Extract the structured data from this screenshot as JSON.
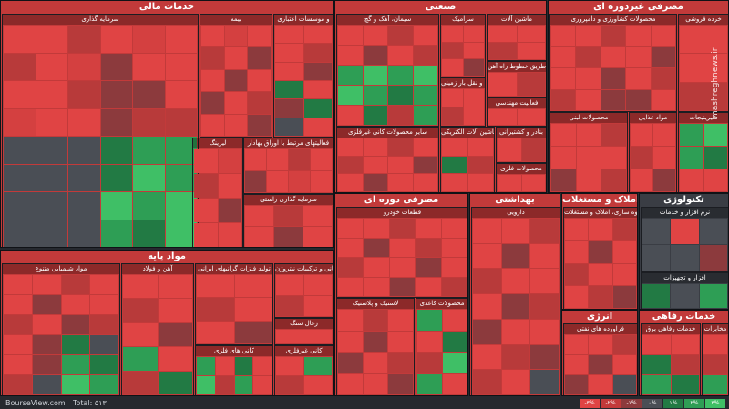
{
  "sections": {
    "financial": "خدمات مالی",
    "industry": "صنعتی",
    "consumer": "مصرفی غیردوره ای",
    "base_materials": "مواد پایه",
    "cyclical_consumer": "مصرفی دوره ای",
    "health": "بهداشتی",
    "real_estate": "املاک و مستغلات",
    "technology": "تکنولوژی",
    "energy": "انرژی",
    "utilities": "خدمات رفاهی"
  },
  "subs": {
    "investment": "سرمایه گذاری",
    "insurance": "بیمه",
    "credit": "و موسسات اعتباری",
    "financial_related": "فعالیتهای مرتبط با اوراق بهادار",
    "leasing": "لیزینگ",
    "holding": "سرمایه گذاری راستی",
    "cement": "سیمان، آهک و گچ",
    "ceramic": "سرامیک",
    "machinery": "ماشین آلات",
    "rail": "طریق خطوط راه آهن",
    "engineering": "فعالیت مهندسی",
    "transport": "حمل و نقل بار زمینی",
    "nonmetal": "سایر محصولات کانی غیرفلزی",
    "electrical": "ماشین آلات الکتریکی",
    "shipping": "بنادر و کشتیرانی",
    "metal_products": "محصولات فلزی",
    "food": "محصولات کشاورزی و دامپروری",
    "dairy": "محصولات لبنی",
    "foods2": "مواد غذایی",
    "pharma_retail": "خرده فروشی",
    "sugar": "شیرینیجات",
    "chemicals": "مواد شیمیایی متنوع",
    "steel": "آهن و فولاد",
    "copper": "تولید فلزات گرانبهای ایرانی",
    "mining": "کانی و ترکیبات نیتروژن",
    "coal": "زغال سنگ",
    "metals": "کانی های فلزی",
    "gold": "کانی غیرفلزی",
    "auto": "قطعات خودرو",
    "plastic": "لاستیک و پلاستیک",
    "paper": "محصولات کاغذی",
    "pharma": "دارویی",
    "building": "انبوه سازی، املاک و مستغلات",
    "software": "نرم افزار و خدمات",
    "hardware": "افزار و تجهیزات",
    "refinery": "فراورده های نفتی",
    "utilities_sub": "خدمات رفاهی برق",
    "utilities_water": "مخابرات"
  },
  "legend": [
    "-۳%",
    "-۲%",
    "-۱%",
    "۰%",
    "۱%",
    "۲%",
    "۳%"
  ],
  "footer": {
    "brand": "BourseView.com",
    "total": "Total: ۵۱۳"
  },
  "watermark": "mashreghnews.ir",
  "colors": {
    "red": "#d44040",
    "green": "#2e9e55",
    "neutral": "#4a4e55"
  }
}
